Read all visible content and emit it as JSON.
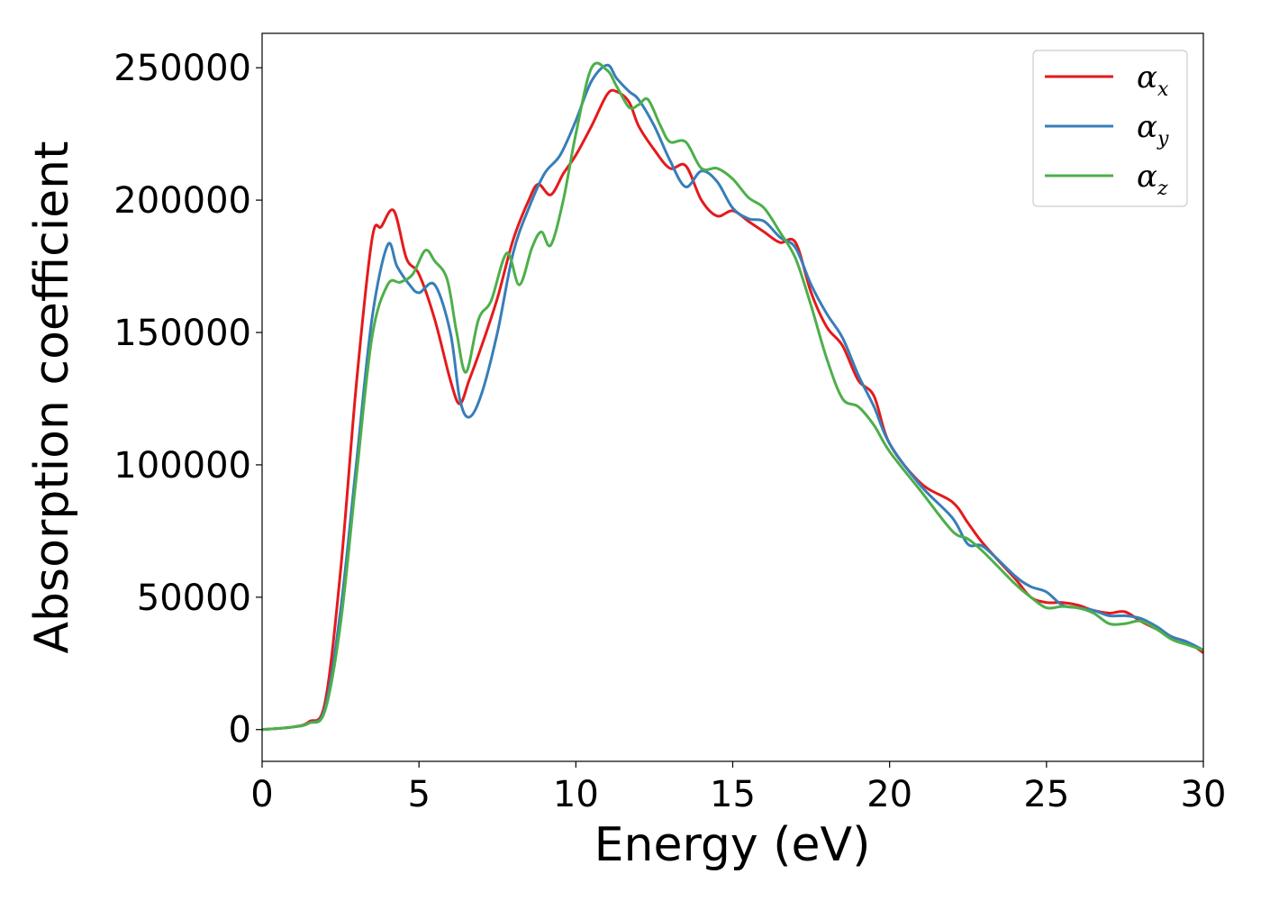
{
  "chart_data": {
    "type": "line",
    "xlabel": "Energy (eV)",
    "ylabel": "Absorption coefficient",
    "xlim": [
      0,
      30
    ],
    "ylim": [
      -12000,
      263000
    ],
    "xticks": [
      0,
      5,
      10,
      15,
      20,
      25,
      30
    ],
    "yticks": [
      0,
      50000,
      100000,
      150000,
      200000,
      250000
    ],
    "grid": false,
    "legend_position": "top-right",
    "series": [
      {
        "name": "α_x",
        "label_main": "α",
        "label_sub": "x",
        "color": "#e41a1c",
        "x": [
          0,
          1,
          1.5,
          2,
          2.5,
          3,
          3.5,
          3.8,
          4.2,
          4.6,
          5,
          5.5,
          6,
          6.3,
          6.6,
          7,
          7.5,
          8,
          8.5,
          8.8,
          9.2,
          9.6,
          10,
          10.5,
          11,
          11.3,
          11.7,
          12,
          12.5,
          13,
          13.5,
          14,
          14.5,
          15,
          15.5,
          16,
          16.5,
          17,
          17.5,
          18,
          18.5,
          19,
          19.5,
          20,
          21,
          22,
          22.5,
          23,
          24,
          24.5,
          25,
          25.5,
          26,
          26.5,
          27,
          27.5,
          28,
          28.5,
          29,
          29.5,
          30
        ],
        "y": [
          0,
          1000,
          3000,
          10000,
          60000,
          130000,
          185000,
          190000,
          196000,
          178000,
          172000,
          155000,
          132000,
          123000,
          132000,
          145000,
          163000,
          185000,
          200000,
          206000,
          202000,
          210000,
          217000,
          228000,
          240000,
          241000,
          237000,
          228000,
          219000,
          212000,
          213000,
          200000,
          194000,
          196000,
          192000,
          188000,
          184000,
          184000,
          165000,
          152000,
          145000,
          132000,
          126000,
          108000,
          93000,
          86000,
          78000,
          70000,
          57000,
          50000,
          48000,
          48000,
          47000,
          45000,
          44000,
          44500,
          41000,
          38000,
          35000,
          33000,
          29000
        ]
      },
      {
        "name": "α_y",
        "label_main": "α",
        "label_sub": "y",
        "color": "#377eb8",
        "x": [
          0,
          1,
          1.5,
          2,
          2.5,
          3,
          3.5,
          4.0,
          4.3,
          4.7,
          5,
          5.5,
          6,
          6.3,
          6.6,
          7,
          7.5,
          8,
          8.5,
          9,
          9.5,
          10,
          10.5,
          11,
          11.3,
          11.7,
          12,
          12.5,
          13,
          13.5,
          14,
          14.5,
          15,
          15.5,
          16,
          16.5,
          17,
          17.5,
          18,
          18.5,
          19,
          19.5,
          20,
          21,
          22,
          22.5,
          23,
          24,
          24.5,
          25,
          25.5,
          26,
          26.5,
          27,
          27.5,
          28,
          28.5,
          29,
          29.5,
          30
        ],
        "y": [
          0,
          1000,
          2500,
          8000,
          45000,
          100000,
          155000,
          183000,
          175000,
          168000,
          165000,
          168000,
          150000,
          125000,
          118000,
          127000,
          150000,
          180000,
          197000,
          210000,
          217000,
          230000,
          245000,
          251000,
          246000,
          241000,
          238000,
          228000,
          215000,
          205000,
          211000,
          207000,
          197000,
          193000,
          192000,
          186000,
          182000,
          168000,
          157000,
          148000,
          134000,
          122000,
          108000,
          92000,
          80000,
          70000,
          69000,
          58000,
          54000,
          52000,
          47000,
          46000,
          45000,
          43000,
          43000,
          42000,
          39000,
          35000,
          33000,
          30000
        ]
      },
      {
        "name": "α_z",
        "label_main": "α",
        "label_sub": "z",
        "color": "#4daf4a",
        "x": [
          0,
          1,
          1.5,
          2,
          2.5,
          3,
          3.5,
          4.0,
          4.4,
          4.8,
          5.2,
          5.5,
          5.9,
          6.2,
          6.5,
          6.9,
          7.3,
          7.8,
          8.2,
          8.6,
          8.9,
          9.2,
          9.6,
          10,
          10.5,
          11,
          11.3,
          11.7,
          12,
          12.3,
          12.7,
          13,
          13.5,
          14,
          14.5,
          15,
          15.5,
          16,
          16.5,
          17,
          17.5,
          18,
          18.5,
          19,
          19.5,
          20,
          21,
          22,
          22.5,
          23,
          24,
          24.5,
          25,
          25.5,
          26,
          26.5,
          27,
          27.5,
          28,
          28.5,
          29,
          29.5,
          30
        ],
        "y": [
          0,
          1000,
          2500,
          7000,
          40000,
          95000,
          148000,
          168000,
          169000,
          172000,
          181000,
          177000,
          170000,
          150000,
          135000,
          155000,
          162000,
          180000,
          168000,
          182000,
          188000,
          183000,
          200000,
          225000,
          250000,
          249000,
          243000,
          235000,
          236000,
          238000,
          228000,
          222000,
          222000,
          212000,
          212000,
          208000,
          201000,
          197000,
          188000,
          178000,
          160000,
          140000,
          125000,
          122000,
          115000,
          105000,
          90000,
          75000,
          72000,
          67000,
          55000,
          50000,
          46000,
          46500,
          46000,
          44000,
          40000,
          40000,
          41000,
          38000,
          34000,
          32000,
          30000
        ]
      }
    ]
  }
}
